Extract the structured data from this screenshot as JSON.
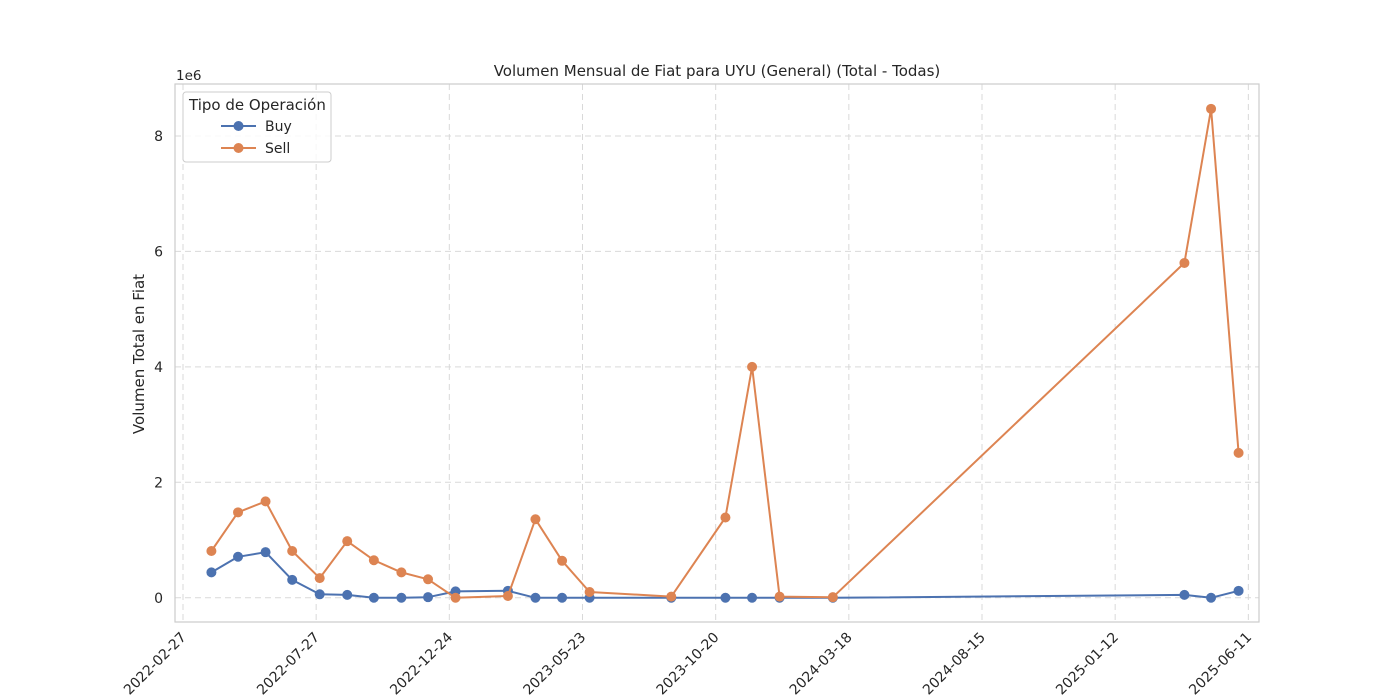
{
  "chart_data": {
    "type": "line",
    "title": "Volumen Mensual de Fiat para UYU (General) (Total - Todas)",
    "xlabel": "",
    "ylabel": "Volumen Total en Fiat",
    "y_offset_label": "1e6",
    "x_scale": "date",
    "xlim": [
      "2022-02-18",
      "2025-06-23"
    ],
    "ylim": [
      -0.42,
      8.9
    ],
    "x_ticks": [
      "2022-02-27",
      "2022-07-27",
      "2022-12-24",
      "2023-05-23",
      "2023-10-20",
      "2024-03-18",
      "2024-08-15",
      "2025-01-12",
      "2025-06-11"
    ],
    "y_ticks": [
      0,
      2,
      4,
      6,
      8
    ],
    "grid": true,
    "legend": {
      "title": "Tipo de Operación",
      "position": "top-left"
    },
    "series": [
      {
        "name": "Buy",
        "color": "#4c72b0",
        "points": [
          {
            "x": "2022-03-31",
            "y": 0.44
          },
          {
            "x": "2022-04-30",
            "y": 0.71
          },
          {
            "x": "2022-05-31",
            "y": 0.79
          },
          {
            "x": "2022-06-30",
            "y": 0.31
          },
          {
            "x": "2022-07-31",
            "y": 0.06
          },
          {
            "x": "2022-08-31",
            "y": 0.05
          },
          {
            "x": "2022-09-30",
            "y": 0.0
          },
          {
            "x": "2022-10-31",
            "y": 0.0
          },
          {
            "x": "2022-11-30",
            "y": 0.01
          },
          {
            "x": "2022-12-31",
            "y": 0.11
          },
          {
            "x": "2023-02-28",
            "y": 0.12
          },
          {
            "x": "2023-03-31",
            "y": 0.0
          },
          {
            "x": "2023-04-30",
            "y": 0.0
          },
          {
            "x": "2023-05-31",
            "y": 0.0
          },
          {
            "x": "2023-08-31",
            "y": 0.0
          },
          {
            "x": "2023-10-31",
            "y": 0.0
          },
          {
            "x": "2023-11-30",
            "y": 0.0
          },
          {
            "x": "2023-12-31",
            "y": 0.0
          },
          {
            "x": "2024-02-29",
            "y": 0.0
          },
          {
            "x": "2025-03-31",
            "y": 0.05
          },
          {
            "x": "2025-04-30",
            "y": 0.0
          },
          {
            "x": "2025-05-31",
            "y": 0.12
          }
        ]
      },
      {
        "name": "Sell",
        "color": "#dd8452",
        "points": [
          {
            "x": "2022-03-31",
            "y": 0.81
          },
          {
            "x": "2022-04-30",
            "y": 1.48
          },
          {
            "x": "2022-05-31",
            "y": 1.67
          },
          {
            "x": "2022-06-30",
            "y": 0.81
          },
          {
            "x": "2022-07-31",
            "y": 0.34
          },
          {
            "x": "2022-08-31",
            "y": 0.98
          },
          {
            "x": "2022-09-30",
            "y": 0.65
          },
          {
            "x": "2022-10-31",
            "y": 0.44
          },
          {
            "x": "2022-11-30",
            "y": 0.32
          },
          {
            "x": "2022-12-31",
            "y": 0.0
          },
          {
            "x": "2023-02-28",
            "y": 0.03
          },
          {
            "x": "2023-03-31",
            "y": 1.36
          },
          {
            "x": "2023-04-30",
            "y": 0.64
          },
          {
            "x": "2023-05-31",
            "y": 0.1
          },
          {
            "x": "2023-08-31",
            "y": 0.02
          },
          {
            "x": "2023-10-31",
            "y": 1.39
          },
          {
            "x": "2023-11-30",
            "y": 4.0
          },
          {
            "x": "2023-12-31",
            "y": 0.02
          },
          {
            "x": "2024-02-29",
            "y": 0.01
          },
          {
            "x": "2025-03-31",
            "y": 5.8
          },
          {
            "x": "2025-04-30",
            "y": 8.47
          },
          {
            "x": "2025-05-31",
            "y": 2.51
          }
        ]
      }
    ]
  }
}
